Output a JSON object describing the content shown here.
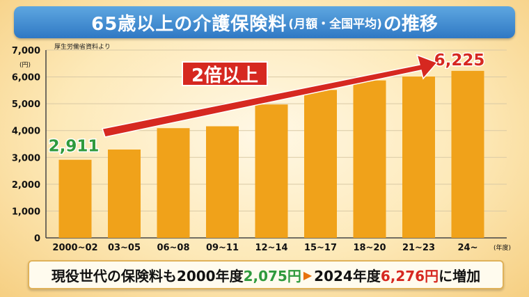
{
  "title": {
    "main": "65歳以上の介護保険料",
    "sub": "(月額・全国平均)",
    "tail": "の推移"
  },
  "source": "厚生労働省資料より",
  "chart_data": {
    "type": "bar",
    "categories": [
      "2000~02",
      "03~05",
      "06~08",
      "09~11",
      "12~14",
      "15~17",
      "18~20",
      "21~23",
      "24~"
    ],
    "values": [
      2911,
      3293,
      4090,
      4160,
      4972,
      5514,
      5869,
      6014,
      6225
    ],
    "ylim": [
      0,
      7000
    ],
    "yticks": [
      "0",
      "1,000",
      "2,000",
      "3,000",
      "4,000",
      "5,000",
      "6,000",
      "7,000"
    ],
    "yunit": "(円)",
    "xunit": "(年度)",
    "first_label": "2,911",
    "last_label": "6,225",
    "arrow_label": "2倍以上",
    "colors": {
      "bar": "#f0a21a",
      "first_label": "#2f9a3d",
      "last_label": "#d62820",
      "arrow": "#d62820"
    }
  },
  "footer": {
    "prefix": "現役世代の保険料も",
    "year_from": "2000年度",
    "value_from": "2,075円",
    "arrow": "▶",
    "year_to": "2024年度",
    "value_to": "6,276円",
    "suffix": "に増加"
  }
}
